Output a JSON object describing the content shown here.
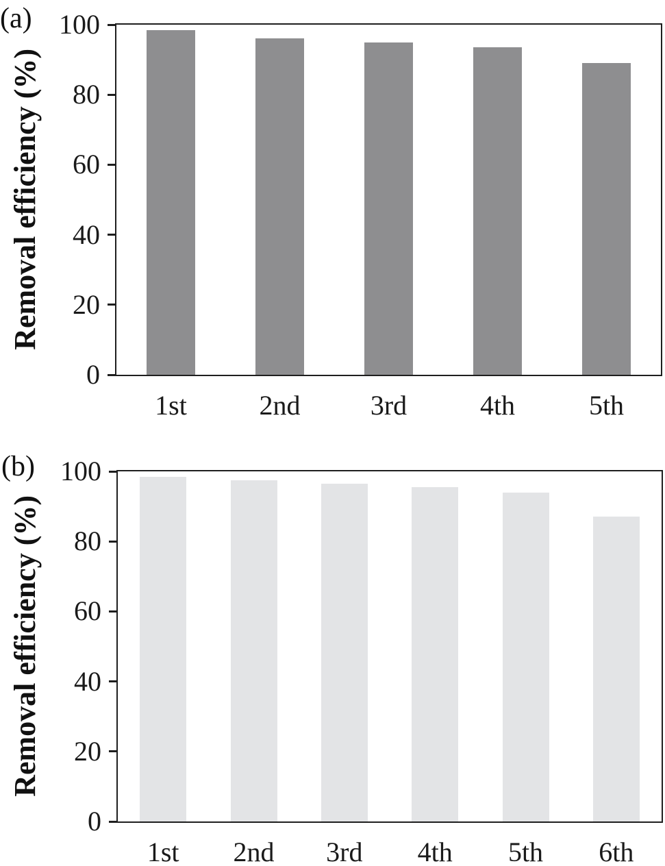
{
  "figure": {
    "background": "#ffffff",
    "frame_color": "#1e1e1e",
    "text_color": "#1a1a1a"
  },
  "panels": [
    {
      "tag": "(a)",
      "bar_color": "#8e8e90"
    },
    {
      "tag": "(b)",
      "bar_color": "#e3e4e6"
    }
  ],
  "chart_data": [
    {
      "type": "bar",
      "panel": "(a)",
      "title": "",
      "categories": [
        "1st",
        "2nd",
        "3rd",
        "4th",
        "5th"
      ],
      "values": [
        98.5,
        96,
        95,
        93.5,
        89
      ],
      "xlabel": "",
      "ylabel": "Removal efficiency (%)",
      "ylim": [
        0,
        100
      ],
      "yticks": [
        0,
        20,
        40,
        60,
        80,
        100
      ],
      "bar_color": "#8e8e90",
      "grid": false,
      "legend": "none"
    },
    {
      "type": "bar",
      "panel": "(b)",
      "title": "",
      "categories": [
        "1st",
        "2nd",
        "3rd",
        "4th",
        "5th",
        "6th"
      ],
      "values": [
        98.5,
        97.5,
        96.5,
        95.5,
        94,
        87
      ],
      "xlabel": "",
      "ylabel": "Removal efficiency (%)",
      "ylim": [
        0,
        100
      ],
      "yticks": [
        0,
        20,
        40,
        60,
        80,
        100
      ],
      "bar_color": "#e3e4e6",
      "grid": false,
      "legend": "none"
    }
  ]
}
